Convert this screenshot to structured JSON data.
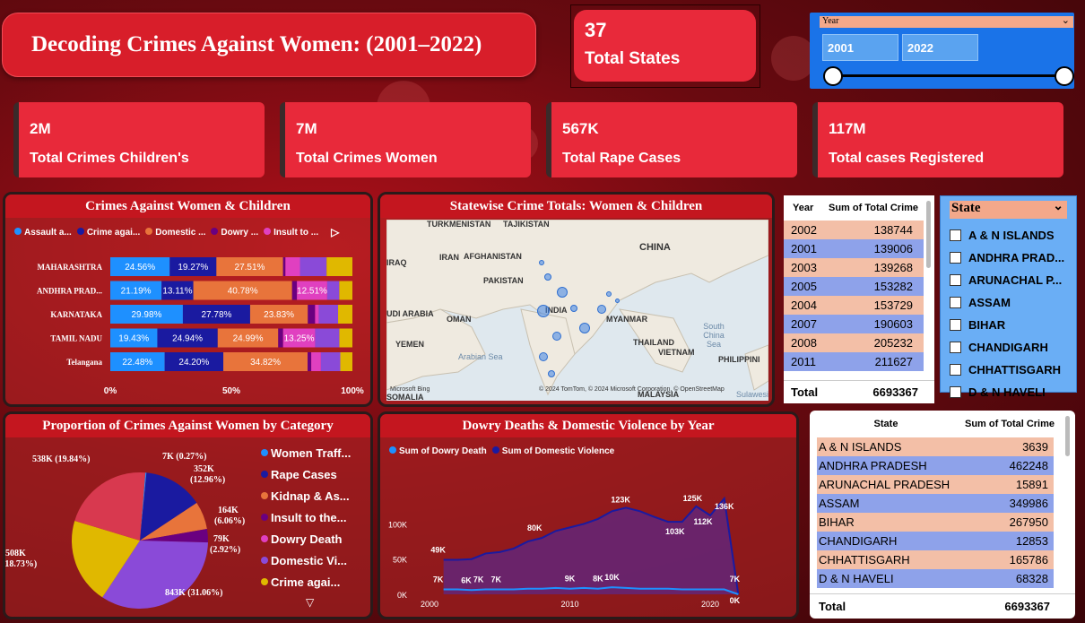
{
  "header": {
    "title": "Decoding Crimes Against Women: (2001–2022)"
  },
  "states_card": {
    "value": "37",
    "label": "Total States"
  },
  "year_slicer": {
    "label": "Year",
    "start": "2001",
    "end": "2022"
  },
  "kpis": [
    {
      "value": "2M",
      "label": "Total Crimes Children's"
    },
    {
      "value": "7M",
      "label": "Total Crimes Women"
    },
    {
      "value": "567K",
      "label": "Total Rape Cases"
    },
    {
      "value": "117M",
      "label": "Total cases Registered"
    }
  ],
  "colors": {
    "assault": "#1e90ff",
    "crime_against": "#1a1aa0",
    "domestic": "#e8743b",
    "dowry": "#6a0080",
    "insult": "#e040c0",
    "purple": "#8a4ad8",
    "gold": "#e0b800"
  },
  "bar_panel": {
    "title": "Crimes Against Women & Children",
    "legend": [
      "Assault a...",
      "Crime agai...",
      "Domestic ...",
      "Dowry ...",
      "Insult to ..."
    ],
    "axis_ticks": [
      "0%",
      "50%",
      "100%"
    ]
  },
  "map_panel": {
    "title": "Statewise Crime Totals: Women & Children",
    "labels": [
      "TURKMENISTAN",
      "TAJIKISTAN",
      "CHINA",
      "IRAQ",
      "IRAN",
      "AFGHANISTAN",
      "PAKISTAN",
      "INDIA",
      "MYANMAR",
      "THAILAND",
      "VIETNAM",
      "PHILIPPINI",
      "UDI ARABIA",
      "OMAN",
      "YEMEN",
      "SOMALIA",
      "MALAYSIA"
    ],
    "sea_labels": [
      "Arabian Sea",
      "South China Sea",
      "Sulawesi"
    ],
    "attribution": "© 2024 TomTom, © 2024 Microsoft Corporation, © OpenStreetMap",
    "bing": "Microsoft Bing"
  },
  "year_table": {
    "headers": [
      "Year",
      "Sum of Total Crime"
    ],
    "rows": [
      [
        "2002",
        "138744"
      ],
      [
        "2001",
        "139006"
      ],
      [
        "2003",
        "139268"
      ],
      [
        "2005",
        "153282"
      ],
      [
        "2004",
        "153729"
      ],
      [
        "2007",
        "190603"
      ],
      [
        "2008",
        "205232"
      ],
      [
        "2011",
        "211627"
      ]
    ],
    "total_label": "Total",
    "total_value": "6693367"
  },
  "state_slicer": {
    "title": "State",
    "items": [
      "A & N ISLANDS",
      "ANDHRA PRAD...",
      "ARUNACHAL P...",
      "ASSAM",
      "BIHAR",
      "CHANDIGARH",
      "CHHATTISGARH",
      "D & N HAVELI"
    ]
  },
  "pie_panel": {
    "title": "Proportion of Crimes Against Women by Category",
    "legend": [
      "Women Traff...",
      "Rape Cases",
      "Kidnap & As...",
      "Insult to the...",
      "Dowry Death",
      "Domestic Vi...",
      "Crime agai..."
    ]
  },
  "line_panel": {
    "title": "Dowry Deaths & Domestic Violence by Year",
    "legend": [
      "Sum of Dowry Death",
      "Sum of Domestic Violence"
    ],
    "y_ticks": [
      "100K",
      "50K",
      "0K"
    ],
    "x_ticks": [
      "2000",
      "2010",
      "2020"
    ]
  },
  "state_table": {
    "headers": [
      "State",
      "Sum of Total Crime"
    ],
    "rows": [
      [
        "A & N ISLANDS",
        "3639"
      ],
      [
        "ANDHRA PRADESH",
        "462248"
      ],
      [
        "ARUNACHAL PRADESH",
        "15891"
      ],
      [
        "ASSAM",
        "349986"
      ],
      [
        "BIHAR",
        "267950"
      ],
      [
        "CHANDIGARH",
        "12853"
      ],
      [
        "CHHATTISGARH",
        "165786"
      ],
      [
        "D & N HAVELI",
        "68328"
      ]
    ],
    "total_label": "Total",
    "total_value": "6693367"
  },
  "chart_data": [
    {
      "type": "bar",
      "title": "Crimes Against Women & Children",
      "categories": [
        "MAHARASHTRA",
        "ANDHRA PRAD...",
        "KARNATAKA",
        "TAMIL NADU",
        "Telangana"
      ],
      "series": [
        {
          "name": "Assault a...",
          "values": [
            24.56,
            21.19,
            29.98,
            19.43,
            22.48
          ]
        },
        {
          "name": "Crime agai...",
          "values": [
            19.27,
            13.11,
            27.78,
            24.94,
            24.2
          ]
        },
        {
          "name": "Domestic ...",
          "values": [
            27.51,
            40.78,
            23.83,
            24.99,
            34.82
          ]
        },
        {
          "name": "Dowry ...",
          "values": [
            1.0,
            2.0,
            3.0,
            2.0,
            1.5
          ]
        },
        {
          "name": "Insult to ...",
          "values": [
            6.0,
            12.51,
            1.5,
            13.25,
            4.0
          ]
        },
        {
          "values": [
            11.0,
            5.0,
            8.0,
            10.0,
            8.0
          ]
        },
        {
          "values": [
            10.66,
            5.41,
            5.91,
            5.39,
            5.0
          ]
        }
      ],
      "value_labels": [
        [
          "24.56%",
          "19.27%",
          "27.51%"
        ],
        [
          "21.19%",
          "13.11%",
          "40.78%",
          "12.51%"
        ],
        [
          "29.98%",
          "27.78%",
          "23.83%"
        ],
        [
          "19.43%",
          "24.94%",
          "24.99%",
          "13.25%"
        ],
        [
          "22.48%",
          "24.20%",
          "34.82%"
        ]
      ],
      "xlim": [
        0,
        100
      ]
    },
    {
      "type": "pie",
      "title": "Proportion of Crimes Against Women by Category",
      "slices": [
        {
          "label": "7K (0.27%)",
          "value": 7
        },
        {
          "label": "352K (12.96%)",
          "value": 352
        },
        {
          "label": "164K (6.06%)",
          "value": 164
        },
        {
          "label": "79K (2.92%)",
          "value": 79
        },
        {
          "label": "843K (31.06%)",
          "value": 843
        },
        {
          "label": "508K (18.73%)",
          "value": 508
        },
        {
          "label": "538K (19.84%)",
          "value": 538
        }
      ]
    },
    {
      "type": "area",
      "title": "Dowry Deaths & Domestic Violence by Year",
      "x": [
        2001,
        2002,
        2003,
        2004,
        2005,
        2006,
        2007,
        2008,
        2009,
        2010,
        2011,
        2012,
        2013,
        2014,
        2015,
        2016,
        2017,
        2018,
        2019,
        2020,
        2021,
        2022
      ],
      "series": [
        {
          "name": "Sum of Dowry Death",
          "values": [
            7,
            7,
            6,
            7,
            7,
            7,
            8,
            8,
            9,
            8,
            9,
            8,
            10,
            9,
            8,
            8,
            8,
            7,
            7,
            7,
            7,
            0
          ]
        },
        {
          "name": "Sum of Domestic Violence",
          "values": [
            49,
            49,
            50,
            58,
            60,
            65,
            75,
            80,
            90,
            95,
            100,
            107,
            118,
            123,
            118,
            110,
            103,
            103,
            125,
            112,
            136,
            0
          ]
        }
      ],
      "point_labels": [
        "49K",
        "80K",
        "123K",
        "103K",
        "112K",
        "125K",
        "136K",
        "7K",
        "6K",
        "7K",
        "7K",
        "9K",
        "8K",
        "10K",
        "7K",
        "0K"
      ],
      "ylim": [
        0,
        140
      ]
    }
  ]
}
